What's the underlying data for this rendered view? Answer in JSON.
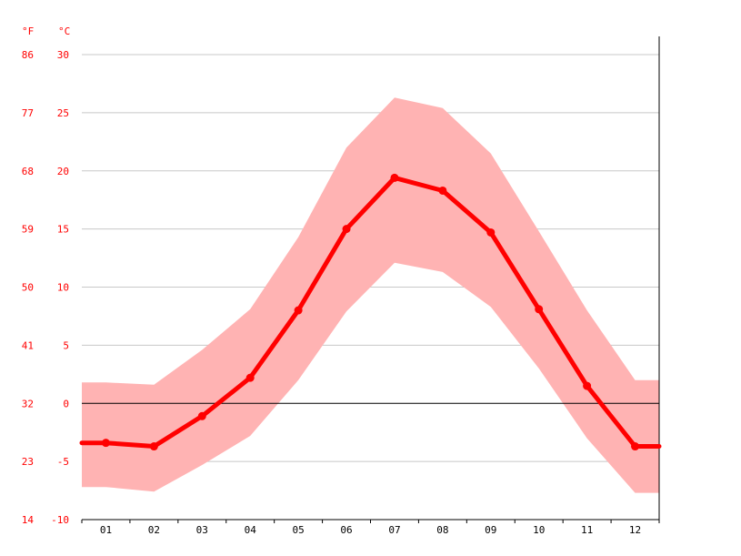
{
  "chart_data": {
    "type": "line",
    "categories": [
      "01",
      "02",
      "03",
      "04",
      "05",
      "06",
      "07",
      "08",
      "09",
      "10",
      "11",
      "12"
    ],
    "series": [
      {
        "values": [
          -3.4,
          -3.7,
          -1.1,
          2.2,
          8.0,
          15.0,
          19.4,
          18.3,
          14.7,
          8.1,
          1.5,
          -3.7
        ],
        "range_min": [
          -7.2,
          -7.6,
          -5.3,
          -2.8,
          2.0,
          7.9,
          12.1,
          11.3,
          8.3,
          3.0,
          -3.0,
          -7.7
        ],
        "range_max": [
          1.8,
          1.6,
          4.6,
          8.1,
          14.3,
          22.0,
          26.3,
          25.4,
          21.5,
          14.8,
          8.0,
          2.0
        ]
      }
    ],
    "y_left_unit_label": "°F",
    "y_right_unit_label": "°C",
    "y_ticks_c": [
      "30",
      "25",
      "20",
      "15",
      "10",
      "5",
      "0",
      "-5",
      "-10"
    ],
    "y_ticks_f": [
      "86",
      "77",
      "68",
      "59",
      "50",
      "41",
      "32",
      "23",
      "14"
    ],
    "ylim": [
      -10,
      30
    ],
    "grid": true,
    "colors": {
      "line": "#ff0000",
      "band": "#ffb3b3",
      "grid": "#c8c8c8",
      "zero_line": "#000000",
      "axis": "#000000",
      "tick_label": "#ff0000",
      "x_tick_label": "#000000"
    }
  }
}
